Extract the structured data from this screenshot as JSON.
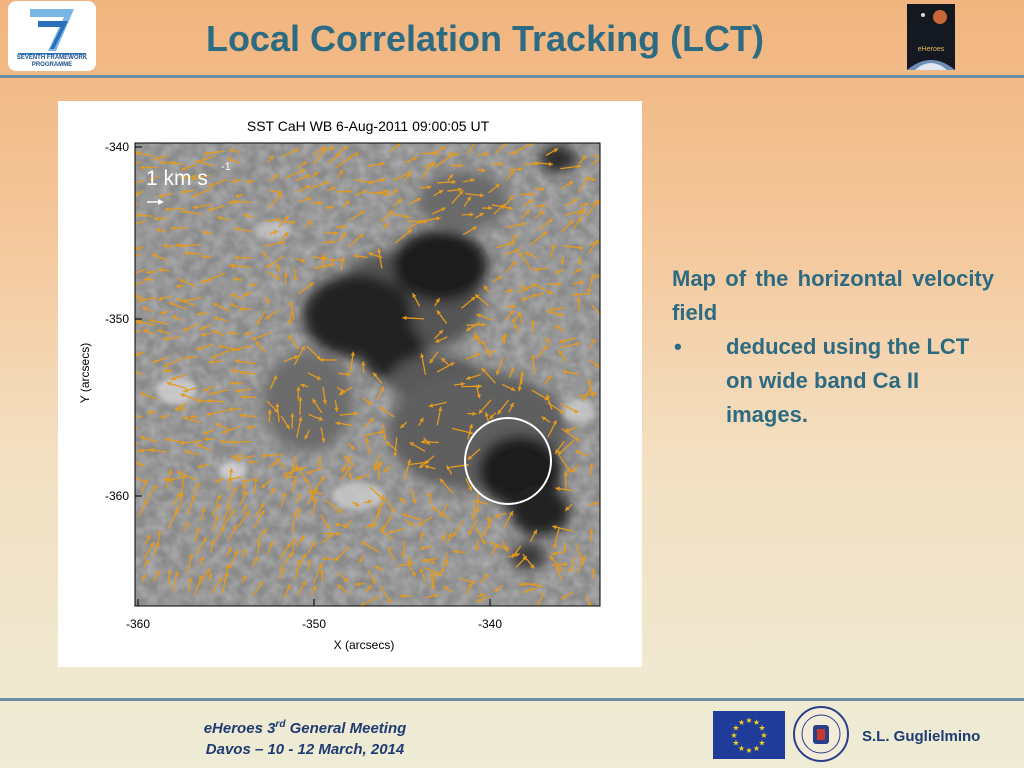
{
  "slide": {
    "title": "Local Correlation Tracking (LCT)"
  },
  "logos": {
    "fp7_line1": "SEVENTH FRAMEWORK",
    "fp7_line2": "PROGRAMME",
    "eheroes": "eHeroes"
  },
  "figure": {
    "plot_title": "SST CaH WB  6-Aug-2011 09:00:05 UT",
    "scale_label": "1 km s",
    "scale_exp": "-1",
    "xlabel": "X (arcsecs)",
    "ylabel": "Y (arcsecs)",
    "xticks": [
      "-360",
      "-350",
      "-340"
    ],
    "yticks": [
      "-340",
      "-350",
      "-360"
    ],
    "arrow_color": "#e39a1e"
  },
  "text": {
    "para1": "Map of the horizontal velocity field",
    "bullet_mark": "•",
    "bullet1": "deduced using the LCT on wide band Ca II images."
  },
  "footer": {
    "event_pre": "eHeroes 3",
    "event_sup": "rd",
    "event_post": " General Meeting",
    "dates": "Davos – 10 - 12 March, 2014",
    "author": "S.L. Guglielmino"
  },
  "colors": {
    "title": "#2d6b83",
    "footer_text": "#1f3b73",
    "rule": "#6f8ea4"
  }
}
